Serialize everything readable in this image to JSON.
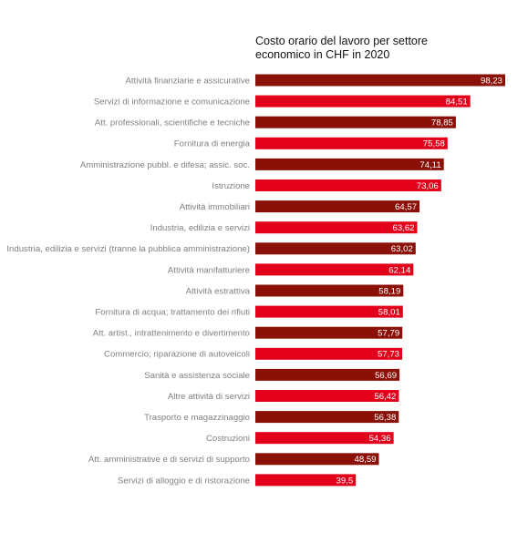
{
  "chart_data": {
    "type": "bar",
    "orientation": "horizontal",
    "title": [
      "Costo orario del lavoro per settore",
      "economico in CHF in 2020"
    ],
    "categories": [
      "Attività finanziarie e assicurative",
      "Servizi di informazione e comunicazione",
      "Att. professionali, scientifiche e tecniche",
      "Fornitura di energia",
      "Amministrazione pubbl. e difesa; assic. soc.",
      "Istruzione",
      "Attività immobiliari",
      "Industria, edilizia e servizi",
      "Industria, edilizia e servizi (tranne la pubblica amministrazione)",
      "Attività manifatturiere",
      "Attività estrattiva",
      "Fornitura di acqua; trattamento dei rifiuti",
      "Att. artist., intrattenimento e divertimento",
      "Commercio; riparazione di autoveicoli",
      "Sanità e assistenza sociale",
      "Altre attività di servizi",
      "Trasporto e magazzinaggio",
      "Costruzioni",
      "Att. amministrative e di servizi di supporto",
      "Servizi di alloggio e di ristorazione"
    ],
    "values": [
      98.23,
      84.51,
      78.85,
      75.58,
      74.11,
      73.06,
      64.57,
      63.62,
      63.02,
      62.14,
      58.19,
      58.01,
      57.79,
      57.73,
      56.69,
      56.42,
      56.38,
      54.36,
      48.59,
      39.5
    ],
    "value_labels": [
      "98,23",
      "84,51",
      "78,85",
      "75,58",
      "74,11",
      "73,06",
      "64,57",
      "63,62",
      "63,02",
      "62,14",
      "58,19",
      "58,01",
      "57,79",
      "57,73",
      "56,69",
      "56,42",
      "56,38",
      "54,36",
      "48,59",
      "39,5"
    ],
    "bar_colors": [
      "#8b1108",
      "#e3001b",
      "#8b1108",
      "#e3001b",
      "#8b1108",
      "#e3001b",
      "#8b1108",
      "#e3001b",
      "#8b1108",
      "#e3001b",
      "#8b1108",
      "#e3001b",
      "#8b1108",
      "#e3001b",
      "#8b1108",
      "#e3001b",
      "#8b1108",
      "#e3001b",
      "#8b1108",
      "#e3001b"
    ],
    "xlim": [
      0,
      98.23
    ],
    "grid": false,
    "legend": "none",
    "colors": {
      "dark_red": "#8b1108",
      "red": "#e3001b",
      "category_text": "#808080",
      "value_text": "#ffffff",
      "title_text": "#111111"
    }
  }
}
